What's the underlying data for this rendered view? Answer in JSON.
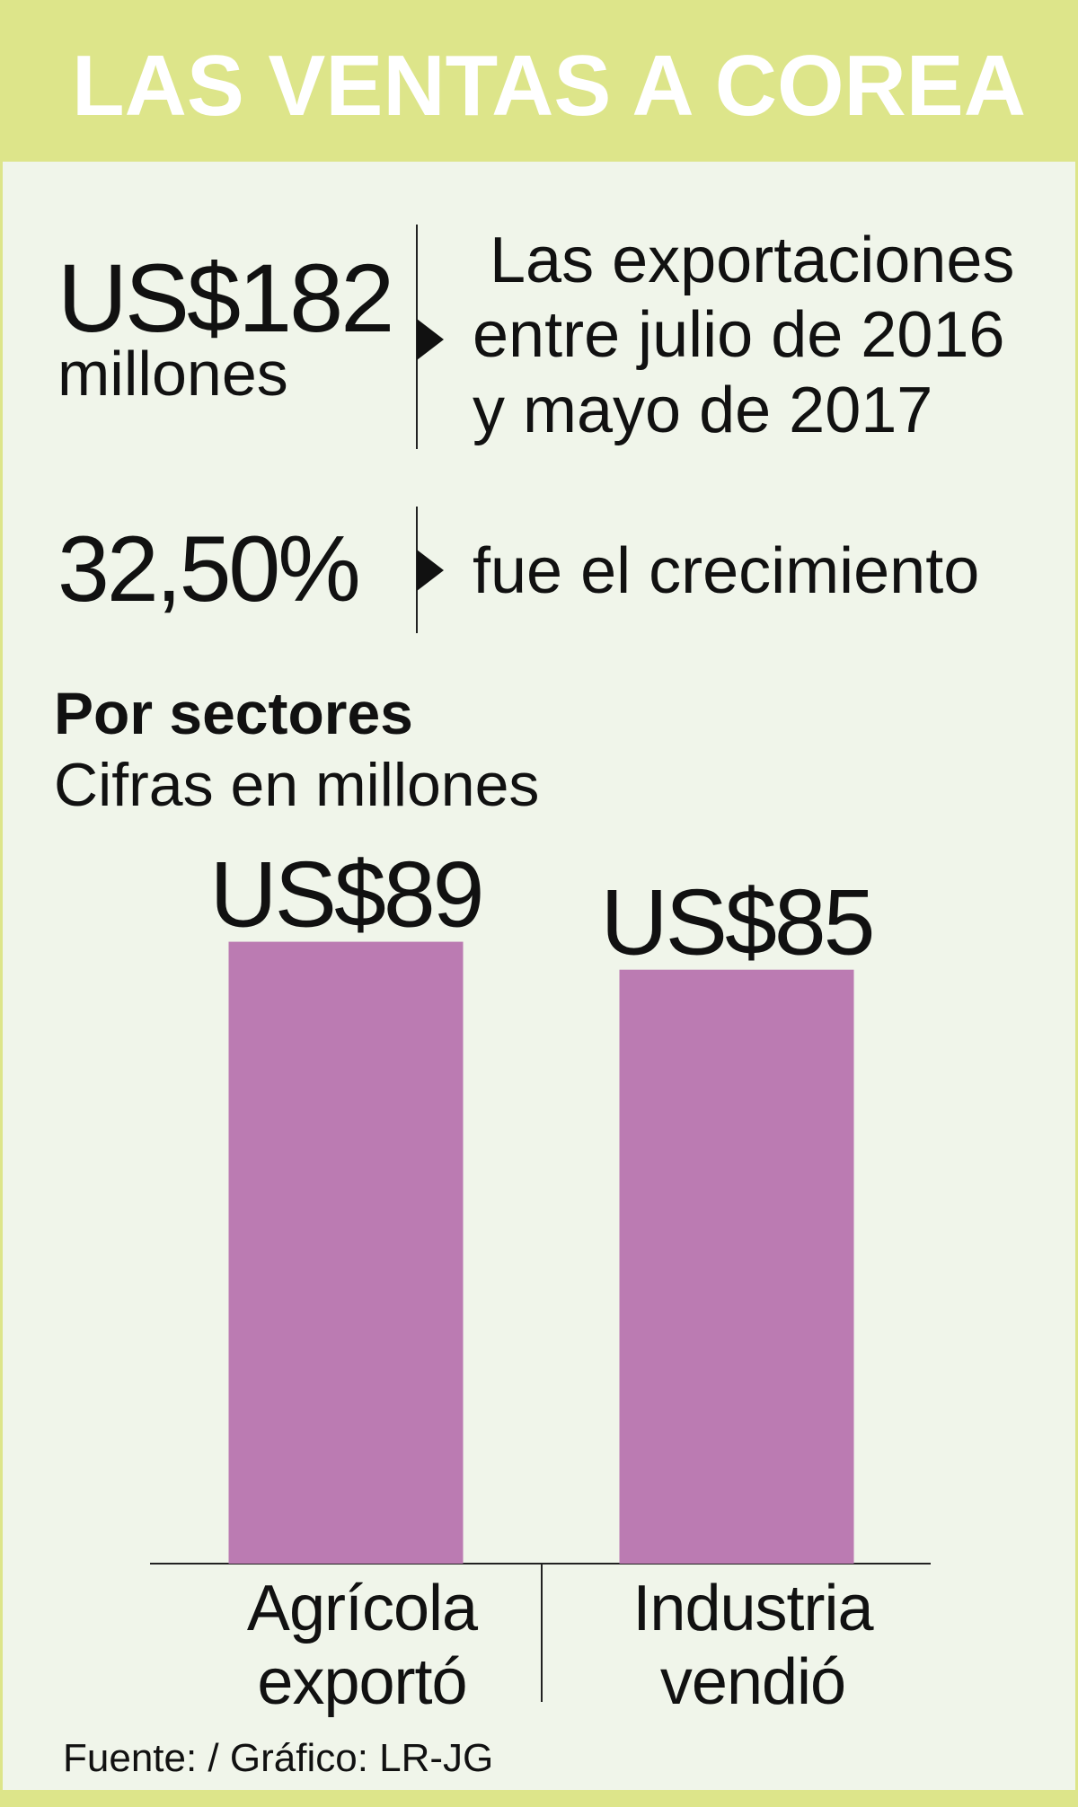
{
  "header": {
    "title": "LAS VENTAS A COREA"
  },
  "stats": [
    {
      "value": "US$182",
      "unit": "millones",
      "description": [
        "Las exportaciones",
        "entre julio de 2016",
        "y mayo de 2017"
      ]
    },
    {
      "value": "32,50%",
      "description": [
        "fue el crecimiento"
      ]
    }
  ],
  "chart_data": {
    "type": "bar",
    "title": "Por sectores",
    "subtitle": "Cifras en millones",
    "categories": [
      "Agrícola exportó",
      "Industria vendió"
    ],
    "values": [
      89,
      85
    ],
    "value_labels": [
      "US$89",
      "US$85"
    ],
    "color": "#bb7bb2"
  },
  "footer": {
    "source": "Fuente: / Gráfico: LR-JG"
  }
}
